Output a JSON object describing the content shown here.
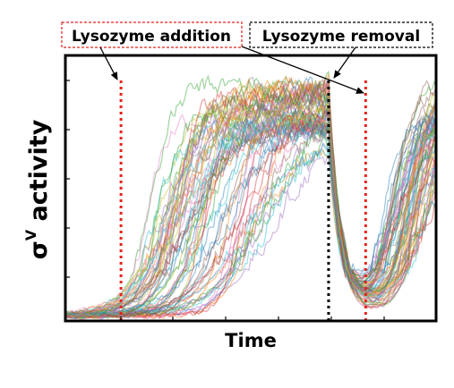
{
  "chart_data": {
    "type": "line",
    "xlabel": "Time",
    "ylabel_main": "σ",
    "ylabel_sup": "V",
    "ylabel_rest": " activity",
    "xlim": [
      0,
      100
    ],
    "ylim": [
      0,
      100
    ],
    "grid": false,
    "events": [
      {
        "x": 15,
        "color": "#e8221b",
        "style": "dotted"
      },
      {
        "x": 71,
        "color": "#000000",
        "style": "dotted"
      },
      {
        "x": 81,
        "color": "#e8221b",
        "style": "dotted"
      }
    ],
    "annotations": [
      {
        "text": "Lysozyme addition",
        "border": "#e8221b",
        "points_to_x": 15,
        "also_points_to_x": 81
      },
      {
        "text": "Lysozyme removal",
        "border": "#000000",
        "points_to_x": 71
      }
    ],
    "ensemble": {
      "trace_count": 70,
      "baseline": 2,
      "plateau_range": [
        70,
        90
      ],
      "rise_start_range": [
        16,
        45
      ],
      "decay_start": 71,
      "minimum_at": 80,
      "recovery_start_range": [
        80,
        90
      ],
      "description_colors": [
        "#1f77b4",
        "#ff7f0e",
        "#2ca02c",
        "#d62728",
        "#9467bd",
        "#8c564b",
        "#e377c2",
        "#17becf",
        "#bcbd22",
        "#7f7f7f"
      ]
    }
  }
}
